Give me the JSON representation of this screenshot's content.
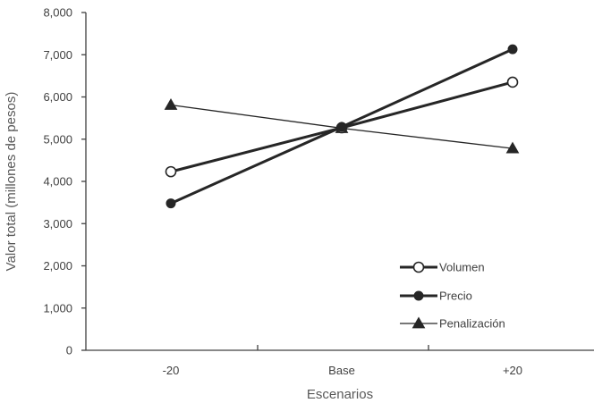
{
  "chart_data": {
    "type": "line",
    "title": "",
    "xlabel": "Escenarios",
    "ylabel": "Valor total (millones de pesos)",
    "categories": [
      "-20",
      "Base",
      "+20"
    ],
    "ylim": [
      0,
      8000
    ],
    "yticks": [
      "0",
      "1,000",
      "2,000",
      "3,000",
      "4,000",
      "5,000",
      "6,000",
      "7,000",
      "8,000"
    ],
    "grid": false,
    "legend_position": "bottom-right",
    "series": [
      {
        "name": "Volumen",
        "values": [
          4230,
          5270,
          6350
        ],
        "marker": "open-circle",
        "line": "thick",
        "color": "#262626"
      },
      {
        "name": "Precio",
        "values": [
          3480,
          5290,
          7130
        ],
        "marker": "filled-circle",
        "line": "thick",
        "color": "#262626"
      },
      {
        "name": "Penalización",
        "values": [
          5810,
          5260,
          4780
        ],
        "marker": "triangle",
        "line": "thin",
        "color": "#262626"
      }
    ]
  }
}
